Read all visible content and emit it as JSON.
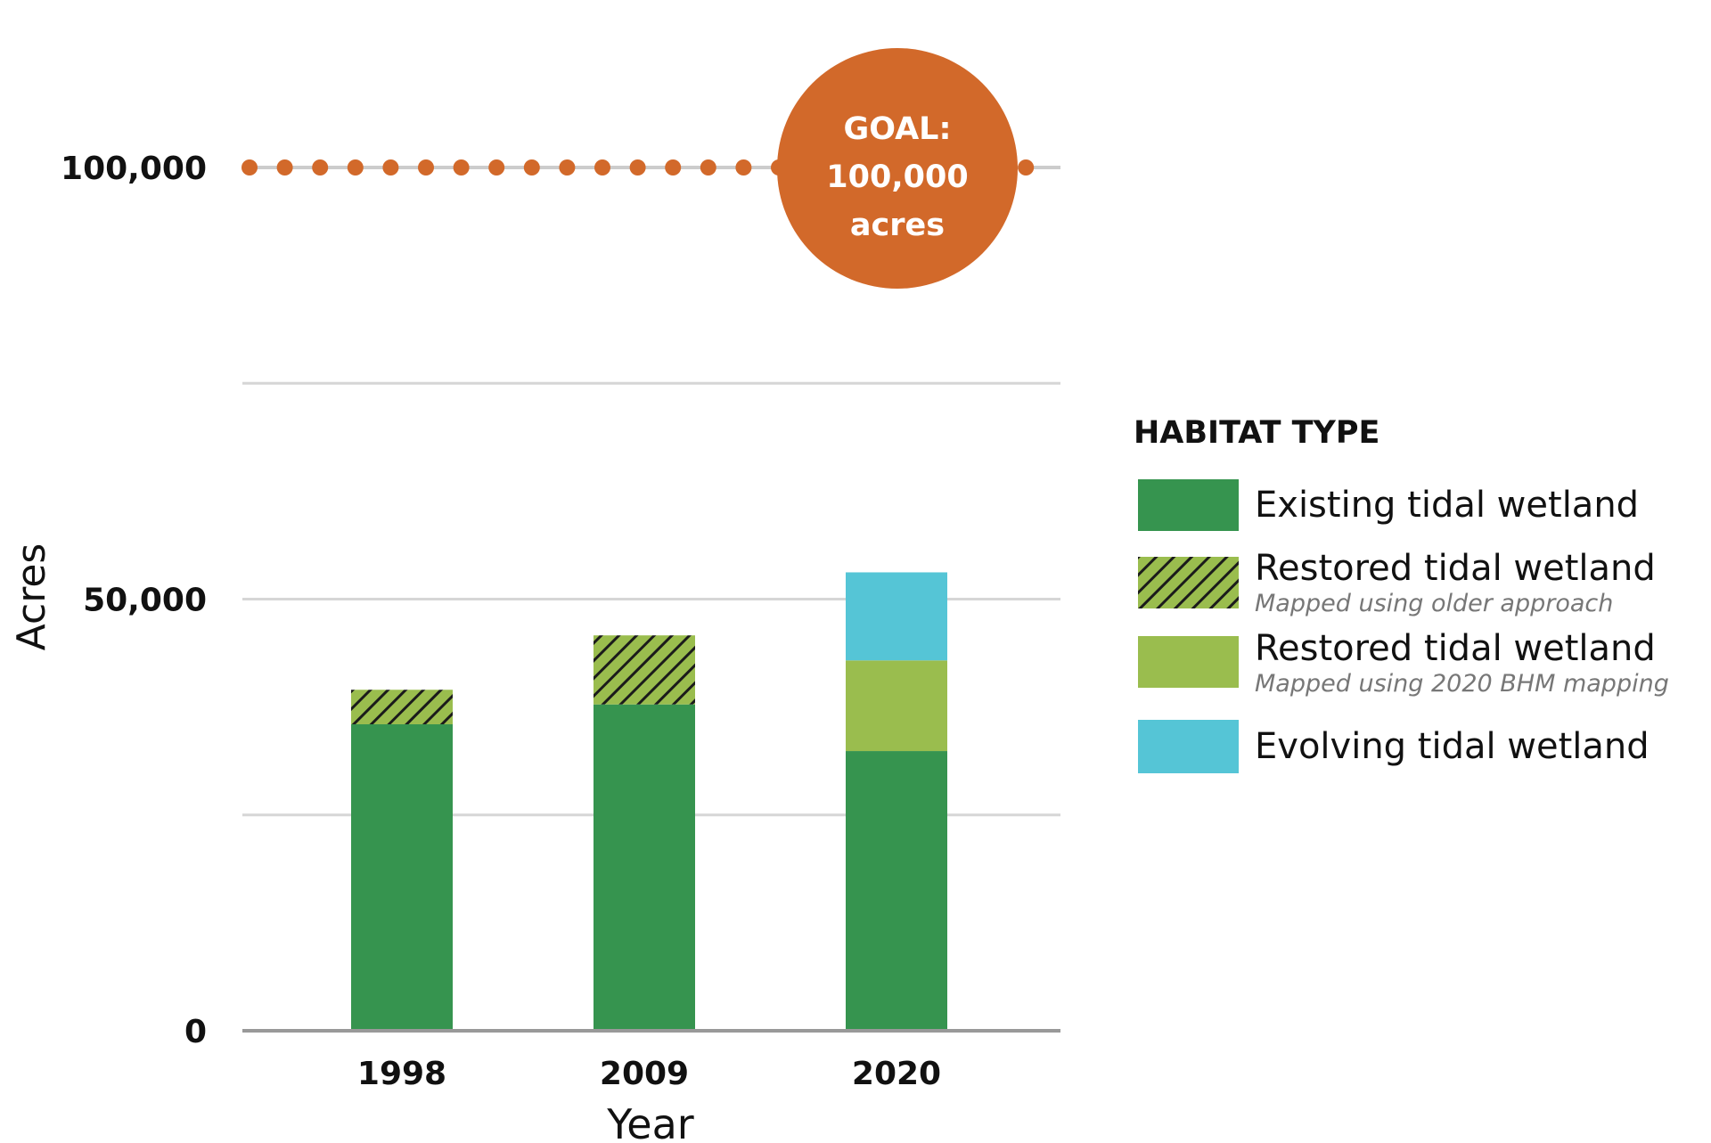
{
  "chart_data": {
    "type": "bar",
    "stacked": true,
    "categories": [
      "1998",
      "2009",
      "2020"
    ],
    "xlabel": "Year",
    "ylabel": "Acres",
    "ylim": [
      0,
      100000
    ],
    "yticks": [
      0,
      50000,
      100000
    ],
    "ytick_labels": [
      "0",
      "50,000",
      "100,000"
    ],
    "gridlines": [
      25000,
      50000,
      75000
    ],
    "goal": {
      "value": 100000,
      "line1": "GOAL:",
      "line2": "100,000",
      "line3": "acres",
      "color": "#D2692A"
    },
    "legend_title": "HABITAT TYPE",
    "legend_position": "right",
    "series": [
      {
        "name": "Existing tidal wetland",
        "note": "",
        "color": "#36944F",
        "pattern": "solid",
        "values": [
          35500,
          37800,
          32400
        ]
      },
      {
        "name": "Restored tidal wetland",
        "note": "Mapped using older approach",
        "color": "#9ABD4E",
        "pattern": "hatched",
        "values": [
          4000,
          8000,
          0
        ]
      },
      {
        "name": "Restored tidal wetland",
        "note": "Mapped using 2020 BHM mapping",
        "color": "#9ABD4E",
        "pattern": "solid",
        "values": [
          0,
          0,
          10500
        ]
      },
      {
        "name": "Evolving tidal wetland",
        "note": "",
        "color": "#55C5D6",
        "pattern": "solid",
        "values": [
          0,
          0,
          10200
        ]
      }
    ]
  }
}
